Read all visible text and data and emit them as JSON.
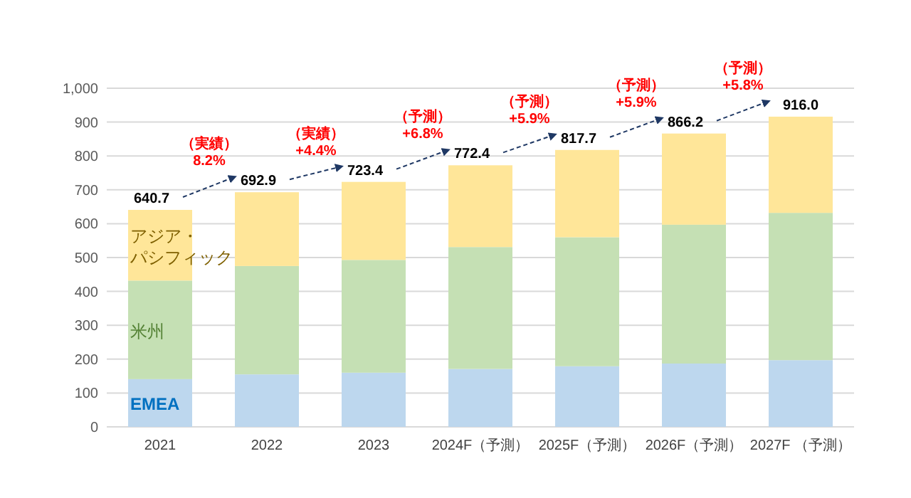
{
  "chart_data": {
    "type": "bar",
    "stacked": true,
    "categories": [
      "2021",
      "2022",
      "2023",
      "2024F（予測）",
      "2025F（予測）",
      "2026F（予測）",
      "2027F （予測）"
    ],
    "series": [
      {
        "name": "EMEA",
        "color": "#bdd7ee",
        "values": [
          141,
          155,
          160,
          171,
          179,
          187,
          197
        ]
      },
      {
        "name": "米州",
        "color": "#c5e0b4",
        "values": [
          291,
          320,
          333,
          360,
          381,
          410,
          435
        ]
      },
      {
        "name": "アジア・パシフィック",
        "color": "#ffe699",
        "values": [
          208.7,
          217.9,
          230.4,
          241.4,
          257.7,
          269.2,
          284.0
        ]
      }
    ],
    "totals": [
      "640.7",
      "692.9",
      "723.4",
      "772.4",
      "817.7",
      "866.2",
      "916.0"
    ],
    "annotations": [
      "（実績）\n8.2%",
      "（実績）\n+4.4%",
      "（予測）\n+6.8%",
      "（予測）\n+5.9%",
      "（予測）\n+5.9%",
      "（予測）\n+5.8%"
    ],
    "ylim": [
      0,
      1000
    ],
    "yticks": [
      0,
      100,
      200,
      300,
      400,
      500,
      600,
      700,
      800,
      900,
      {
        "value": 1000,
        "label": "1,000"
      }
    ],
    "grid": "y"
  }
}
